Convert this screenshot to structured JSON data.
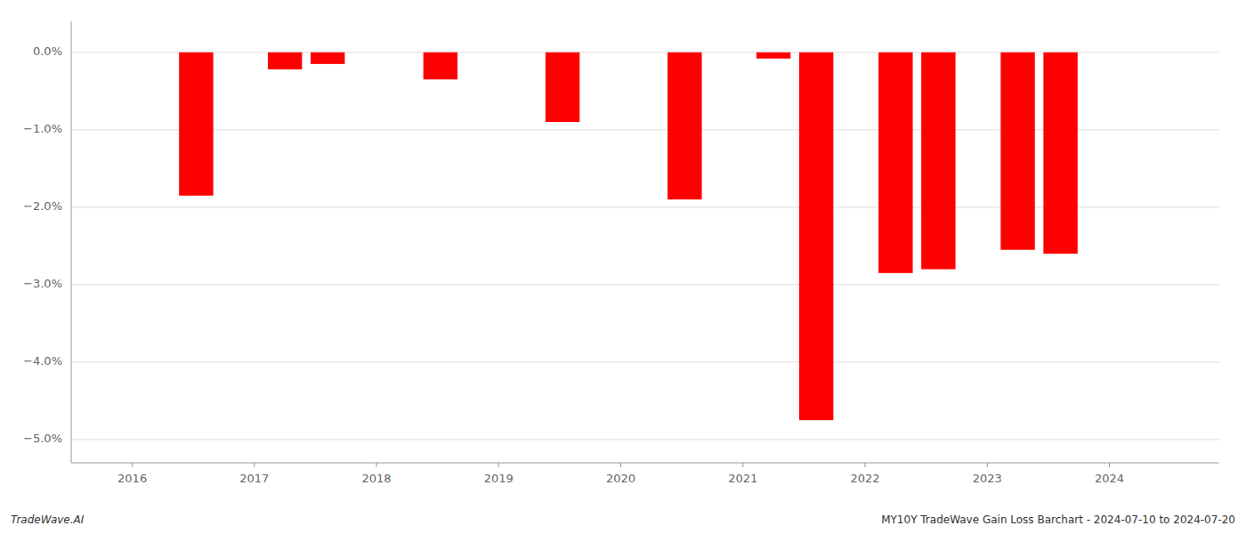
{
  "chart_data": {
    "type": "bar",
    "x": [
      2016.523,
      2017.25,
      2017.6,
      2018.523,
      2019.523,
      2020.523,
      2021.25,
      2021.6,
      2022.25,
      2022.6,
      2023.25,
      2023.6
    ],
    "values": [
      -1.85,
      -0.22,
      -0.15,
      -0.35,
      -0.9,
      -1.9,
      -0.08,
      -4.75,
      -2.85,
      -2.8,
      -2.55,
      -2.6
    ],
    "color": "#ff0000",
    "xlim": [
      2015.5,
      2024.9
    ],
    "ylim": [
      -5.3,
      0.4
    ],
    "xticks": [
      2016,
      2017,
      2018,
      2019,
      2020,
      2021,
      2022,
      2023,
      2024
    ],
    "yticks": [
      {
        "value": 0.0,
        "label": "0.0%"
      },
      {
        "value": -1.0,
        "label": "−1.0%"
      },
      {
        "value": -2.0,
        "label": "−2.0%"
      },
      {
        "value": -3.0,
        "label": "−3.0%"
      },
      {
        "value": -4.0,
        "label": "−4.0%"
      },
      {
        "value": -5.0,
        "label": "−5.0%"
      }
    ],
    "grid": true,
    "annotations": [
      "TradeWave.AI",
      "MY10Y TradeWave Gain Loss Barchart - 2024-07-10 to 2024-07-20"
    ]
  }
}
